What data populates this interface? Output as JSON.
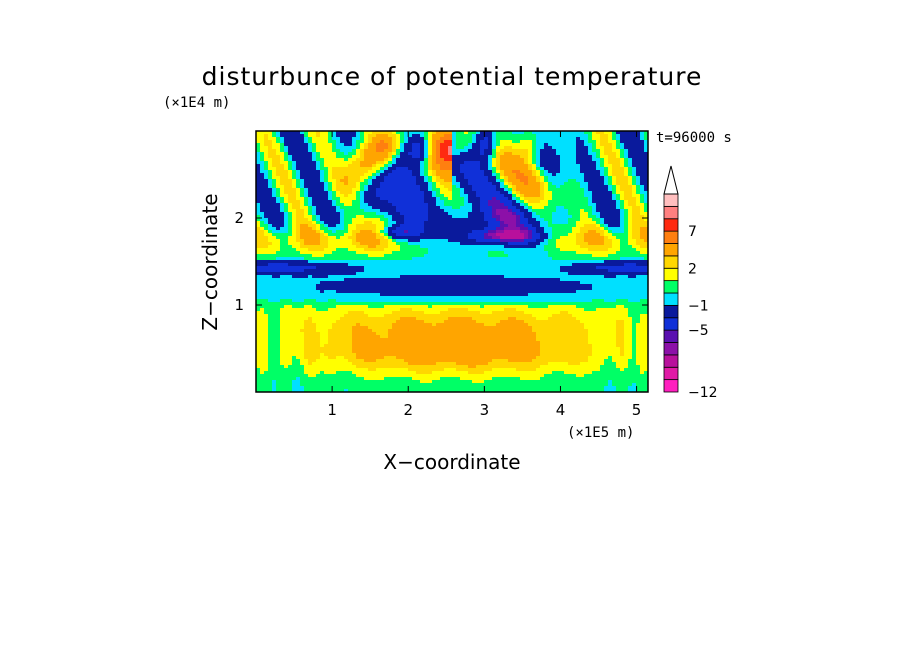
{
  "chart_data": {
    "type": "heatmap",
    "title": "disturbunce of potential temperature",
    "time_label": "t=96000 s",
    "xlabel": "X−coordinate",
    "ylabel": "Z−coordinate",
    "x_unit": "(×1E5 m)",
    "y_unit": "(×1E4 m)",
    "xlim": [
      0,
      5.15
    ],
    "ylim": [
      0,
      3.0
    ],
    "x_ticks": [
      "1",
      "2",
      "3",
      "4",
      "5"
    ],
    "y_ticks": [
      "1",
      "2"
    ],
    "colorbar": {
      "tick_labels": [
        "−12",
        "−5",
        "−1",
        "2",
        "7"
      ],
      "extend": "max",
      "colors": [
        "#ff1fbf",
        "#e01aa6",
        "#b8109c",
        "#8c10a8",
        "#5a10b0",
        "#1030d8",
        "#0a1a9c",
        "#00e0ff",
        "#00ff66",
        "#ffff00",
        "#ffd700",
        "#ffa500",
        "#ff7f10",
        "#ff2a10",
        "#ff8080",
        "#ffbfbf"
      ]
    }
  }
}
